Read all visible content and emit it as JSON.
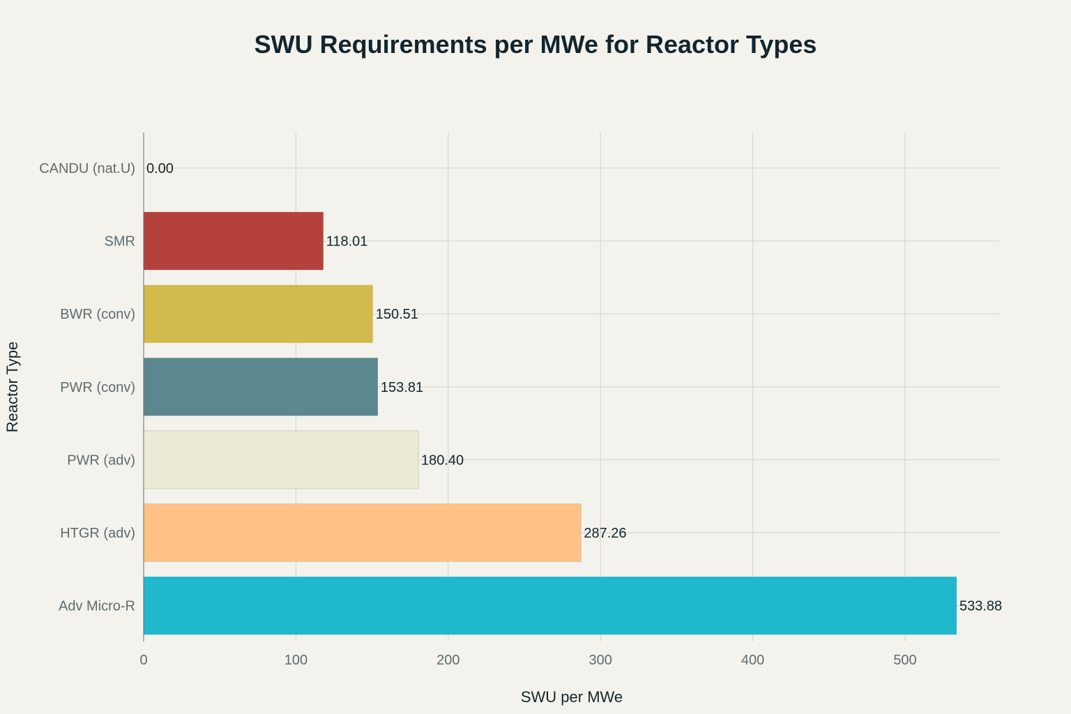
{
  "chart_data": {
    "type": "bar",
    "orientation": "horizontal",
    "title": "SWU Requirements per MWe for Reactor Types",
    "xlabel": "SWU per MWe",
    "ylabel": "Reactor Type",
    "xlim": [
      0,
      560
    ],
    "x_ticks": [
      0,
      100,
      200,
      300,
      400,
      500
    ],
    "x_tick_labels": [
      "0",
      "100",
      "200",
      "300",
      "400",
      "500"
    ],
    "grid": true,
    "legend": "none",
    "categories": [
      "CANDU (nat.U)",
      "SMR",
      "BWR (conv)",
      "PWR (conv)",
      "PWR (adv)",
      "HTGR (adv)",
      "Adv Micro-R"
    ],
    "values": [
      0.0,
      118.01,
      150.51,
      153.81,
      180.4,
      287.26,
      533.88
    ],
    "data_labels": [
      "0.00",
      "118.01",
      "150.51",
      "153.81",
      "180.40",
      "287.26",
      "533.88"
    ],
    "colors": [
      "#1FB8CD",
      "#B4413C",
      "#D2BA4C",
      "#5D878F",
      "#ECEBD5",
      "#FFC185",
      "#1FB8CD"
    ]
  }
}
